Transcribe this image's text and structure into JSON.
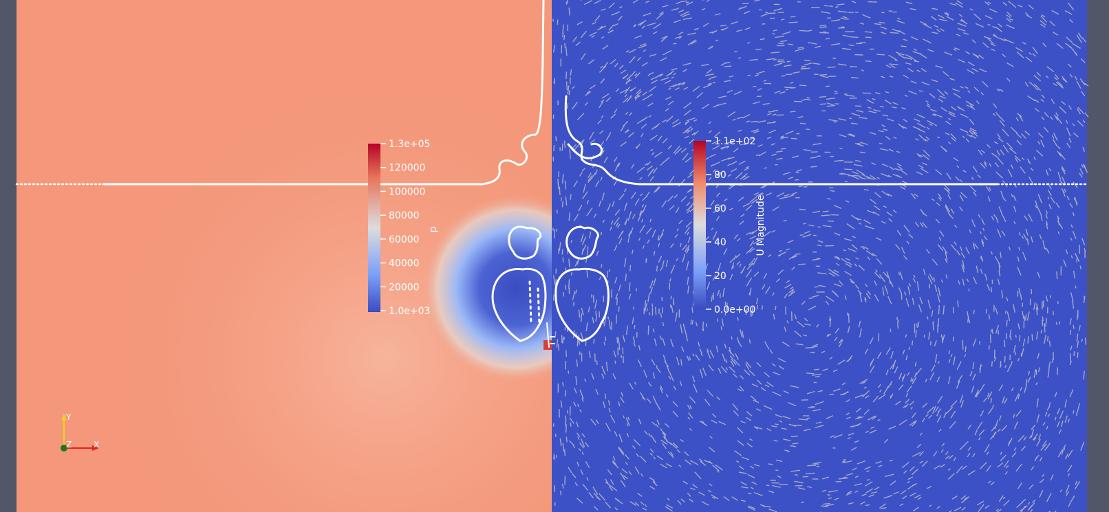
{
  "pressure_legend": {
    "title": "p",
    "ticks": [
      "1.3e+05",
      "120000",
      "100000",
      "80000",
      "60000",
      "40000",
      "20000",
      "1.0e+03"
    ]
  },
  "velocity_legend": {
    "title": "U Magnitude",
    "ticks": [
      "1.1e+02",
      "80",
      "60",
      "40",
      "20",
      "0.0e+00"
    ]
  },
  "orientation_axes": {
    "y": "Y",
    "z": "Z",
    "x": "X"
  },
  "colors": {
    "background": "#525669",
    "pressure_field": "#f4977a",
    "velocity_field": "#3d51c6",
    "glyphs": "#b9b9c4",
    "contour": "#ffffff",
    "axis_x": "#e8201f",
    "axis_y": "#f2d21c",
    "axis_z": "#1a7a1a"
  }
}
